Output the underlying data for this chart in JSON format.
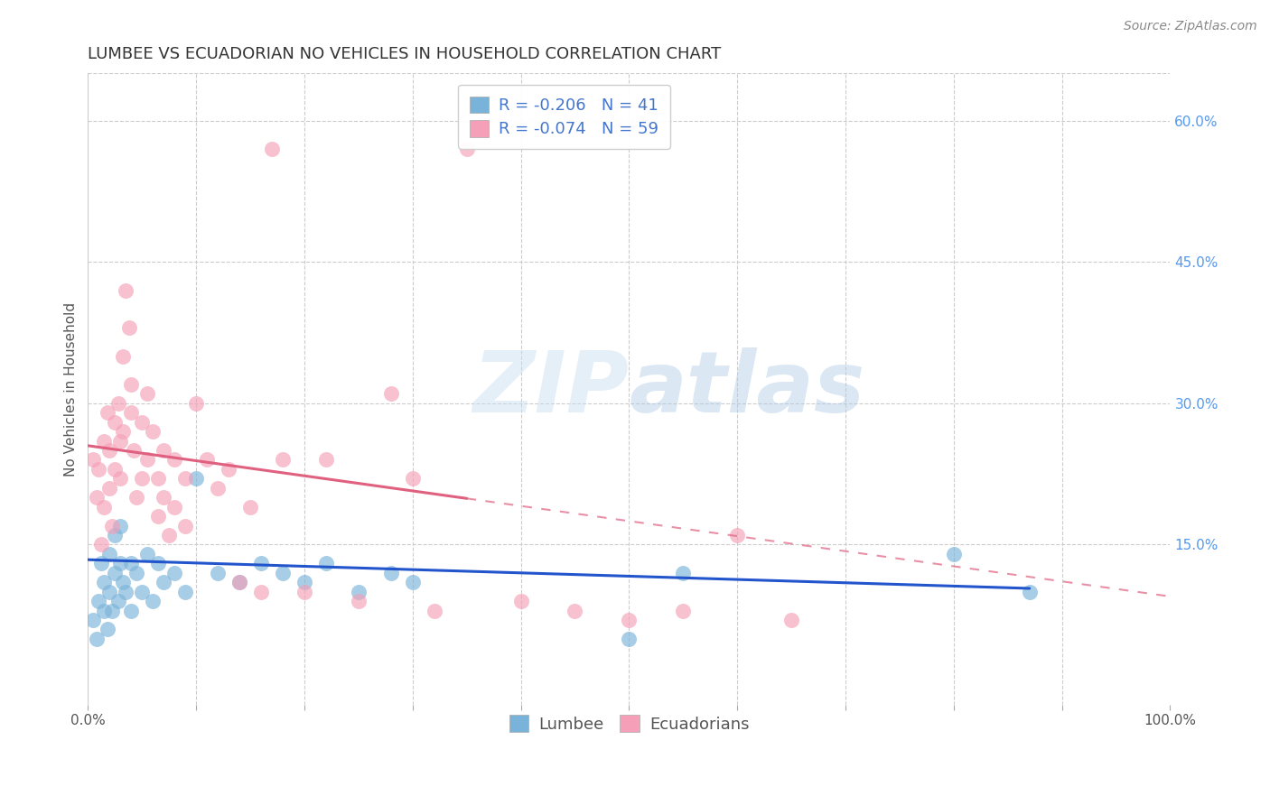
{
  "title": "LUMBEE VS ECUADORIAN NO VEHICLES IN HOUSEHOLD CORRELATION CHART",
  "source_text": "Source: ZipAtlas.com",
  "ylabel": "No Vehicles in Household",
  "watermark_zip": "ZIP",
  "watermark_atlas": "atlas",
  "x_min": 0.0,
  "x_max": 1.0,
  "y_min": -0.02,
  "y_max": 0.65,
  "y_ticks_right": [
    0.15,
    0.3,
    0.45,
    0.6
  ],
  "y_tick_labels_right": [
    "15.0%",
    "30.0%",
    "45.0%",
    "60.0%"
  ],
  "lumbee_color": "#7ab3d9",
  "ecuadorian_color": "#f5a0b8",
  "lumbee_line_color": "#2255cc",
  "ecuadorian_line_color": "#e06080",
  "legend_label_1": "R = -0.206   N = 41",
  "legend_label_2": "R = -0.074   N = 59",
  "lumbee_x": [
    0.005,
    0.008,
    0.01,
    0.012,
    0.015,
    0.015,
    0.018,
    0.02,
    0.02,
    0.022,
    0.025,
    0.025,
    0.028,
    0.03,
    0.03,
    0.032,
    0.035,
    0.04,
    0.04,
    0.045,
    0.05,
    0.055,
    0.06,
    0.065,
    0.07,
    0.08,
    0.09,
    0.1,
    0.12,
    0.14,
    0.16,
    0.18,
    0.2,
    0.22,
    0.25,
    0.28,
    0.3,
    0.5,
    0.55,
    0.8,
    0.87
  ],
  "lumbee_y": [
    0.07,
    0.05,
    0.09,
    0.13,
    0.08,
    0.11,
    0.06,
    0.1,
    0.14,
    0.08,
    0.12,
    0.16,
    0.09,
    0.13,
    0.17,
    0.11,
    0.1,
    0.13,
    0.08,
    0.12,
    0.1,
    0.14,
    0.09,
    0.13,
    0.11,
    0.12,
    0.1,
    0.22,
    0.12,
    0.11,
    0.13,
    0.12,
    0.11,
    0.13,
    0.1,
    0.12,
    0.11,
    0.05,
    0.12,
    0.14,
    0.1
  ],
  "ecuadorian_x": [
    0.005,
    0.008,
    0.01,
    0.012,
    0.015,
    0.015,
    0.018,
    0.02,
    0.02,
    0.022,
    0.025,
    0.025,
    0.028,
    0.03,
    0.03,
    0.032,
    0.032,
    0.035,
    0.038,
    0.04,
    0.04,
    0.042,
    0.045,
    0.05,
    0.05,
    0.055,
    0.055,
    0.06,
    0.065,
    0.065,
    0.07,
    0.07,
    0.075,
    0.08,
    0.08,
    0.09,
    0.09,
    0.1,
    0.11,
    0.12,
    0.13,
    0.14,
    0.15,
    0.16,
    0.17,
    0.18,
    0.2,
    0.22,
    0.25,
    0.28,
    0.3,
    0.32,
    0.35,
    0.4,
    0.45,
    0.5,
    0.55,
    0.6,
    0.65
  ],
  "ecuadorian_y": [
    0.24,
    0.2,
    0.23,
    0.15,
    0.26,
    0.19,
    0.29,
    0.25,
    0.21,
    0.17,
    0.28,
    0.23,
    0.3,
    0.26,
    0.22,
    0.35,
    0.27,
    0.42,
    0.38,
    0.32,
    0.29,
    0.25,
    0.2,
    0.28,
    0.22,
    0.31,
    0.24,
    0.27,
    0.22,
    0.18,
    0.25,
    0.2,
    0.16,
    0.24,
    0.19,
    0.22,
    0.17,
    0.3,
    0.24,
    0.21,
    0.23,
    0.11,
    0.19,
    0.1,
    0.57,
    0.24,
    0.1,
    0.24,
    0.09,
    0.31,
    0.22,
    0.08,
    0.57,
    0.09,
    0.08,
    0.07,
    0.08,
    0.16,
    0.07
  ],
  "background_color": "#ffffff",
  "grid_color": "#cccccc",
  "title_fontsize": 13,
  "axis_label_fontsize": 11,
  "tick_fontsize": 11,
  "legend_fontsize": 13,
  "source_fontsize": 10
}
